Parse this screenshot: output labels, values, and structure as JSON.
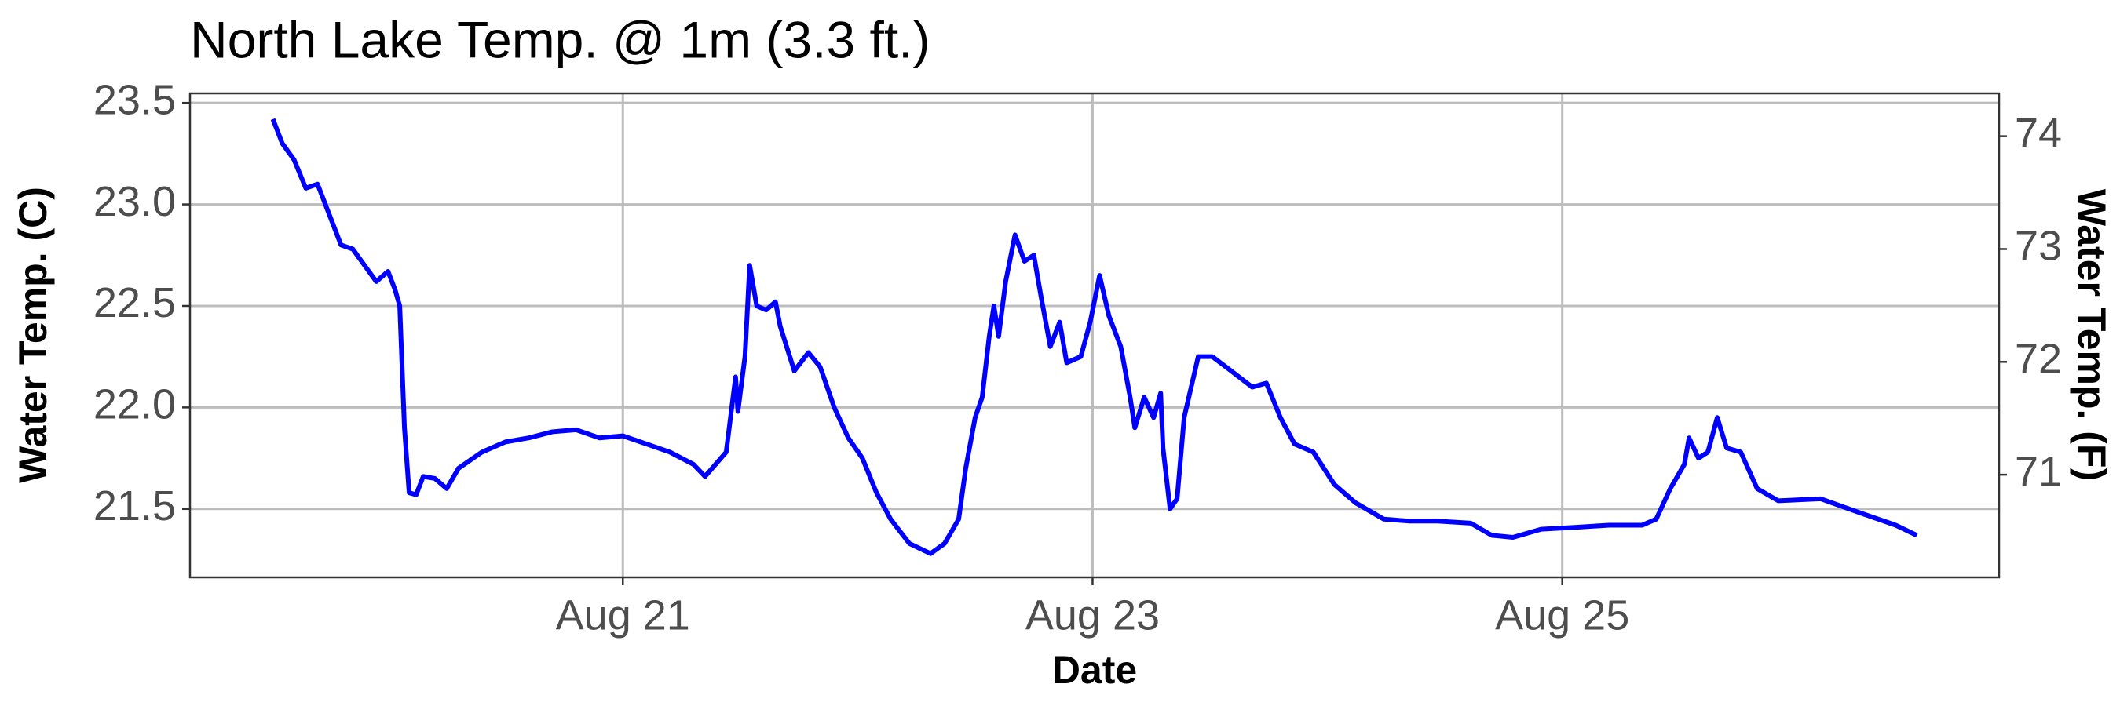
{
  "chart_data": {
    "type": "line",
    "title": "North Lake Temp. @ 1m (3.3 ft.)",
    "x_label": "Date",
    "y_label": "Water Temp. (C)",
    "y2_label": "Water Temp. (F)",
    "xlim": [
      19.157,
      26.86
    ],
    "xticks": [
      {
        "value": 21,
        "label": "Aug 21"
      },
      {
        "value": 23,
        "label": "Aug 23"
      },
      {
        "value": 25,
        "label": "Aug 25"
      }
    ],
    "ylim": [
      21.163,
      23.547
    ],
    "yticks": [
      {
        "value": 21.5,
        "label": "21.5"
      },
      {
        "value": 22,
        "label": "22.0"
      },
      {
        "value": 22.5,
        "label": "22.5"
      },
      {
        "value": 23,
        "label": "23.0"
      },
      {
        "value": 23.5,
        "label": "23.5"
      }
    ],
    "y2lim": [
      70.09,
      74.38
    ],
    "y2ticks": [
      71,
      72,
      73,
      74
    ],
    "grid": true,
    "x": [
      19.51,
      19.55,
      19.6,
      19.65,
      19.7,
      19.75,
      19.8,
      19.85,
      19.9,
      19.95,
      20.0,
      20.03,
      20.05,
      20.07,
      20.09,
      20.12,
      20.15,
      20.2,
      20.25,
      20.3,
      20.4,
      20.5,
      20.6,
      20.7,
      20.8,
      20.9,
      21.0,
      21.1,
      21.2,
      21.3,
      21.35,
      21.44,
      21.48,
      21.49,
      21.52,
      21.54,
      21.57,
      21.61,
      21.65,
      21.67,
      21.73,
      21.79,
      21.84,
      21.9,
      21.96,
      22.02,
      22.08,
      22.14,
      22.22,
      22.31,
      22.37,
      22.43,
      22.46,
      22.5,
      22.53,
      22.56,
      22.58,
      22.6,
      22.63,
      22.67,
      22.71,
      22.75,
      22.78,
      22.82,
      22.86,
      22.89,
      22.95,
      22.99,
      23.03,
      23.07,
      23.12,
      23.16,
      23.18,
      23.22,
      23.26,
      23.29,
      23.3,
      23.33,
      23.36,
      23.39,
      23.45,
      23.51,
      23.59,
      23.68,
      23.74,
      23.8,
      23.86,
      23.94,
      24.03,
      24.12,
      24.24,
      24.35,
      24.47,
      24.61,
      24.7,
      24.79,
      24.91,
      25.06,
      25.2,
      25.34,
      25.4,
      25.46,
      25.52,
      25.54,
      25.58,
      25.62,
      25.66,
      25.7,
      25.76,
      25.83,
      25.92,
      26.1,
      26.27,
      26.42,
      26.51
    ],
    "series": [
      {
        "name": "Water Temp.",
        "color": "#0000ff",
        "values": [
          23.42,
          23.3,
          23.22,
          23.08,
          23.1,
          22.95,
          22.8,
          22.78,
          22.7,
          22.62,
          22.67,
          22.58,
          22.5,
          21.9,
          21.58,
          21.57,
          21.66,
          21.65,
          21.6,
          21.7,
          21.78,
          21.83,
          21.85,
          21.88,
          21.89,
          21.85,
          21.86,
          21.82,
          21.78,
          21.72,
          21.66,
          21.78,
          22.15,
          21.98,
          22.25,
          22.7,
          22.5,
          22.48,
          22.52,
          22.4,
          22.18,
          22.27,
          22.2,
          22.0,
          21.85,
          21.75,
          21.58,
          21.45,
          21.33,
          21.28,
          21.33,
          21.45,
          21.7,
          21.95,
          22.05,
          22.35,
          22.5,
          22.35,
          22.62,
          22.85,
          22.72,
          22.75,
          22.55,
          22.3,
          22.42,
          22.22,
          22.25,
          22.42,
          22.65,
          22.45,
          22.3,
          22.05,
          21.9,
          22.05,
          21.95,
          22.07,
          21.8,
          21.5,
          21.55,
          21.95,
          22.25,
          22.25,
          22.18,
          22.1,
          22.12,
          21.95,
          21.82,
          21.78,
          21.62,
          21.53,
          21.45,
          21.44,
          21.44,
          21.43,
          21.37,
          21.36,
          21.4,
          21.41,
          21.42,
          21.42,
          21.45,
          21.6,
          21.72,
          21.85,
          21.75,
          21.78,
          21.95,
          21.8,
          21.78,
          21.6,
          21.54,
          21.55,
          21.48,
          21.42,
          21.37
        ]
      }
    ]
  }
}
